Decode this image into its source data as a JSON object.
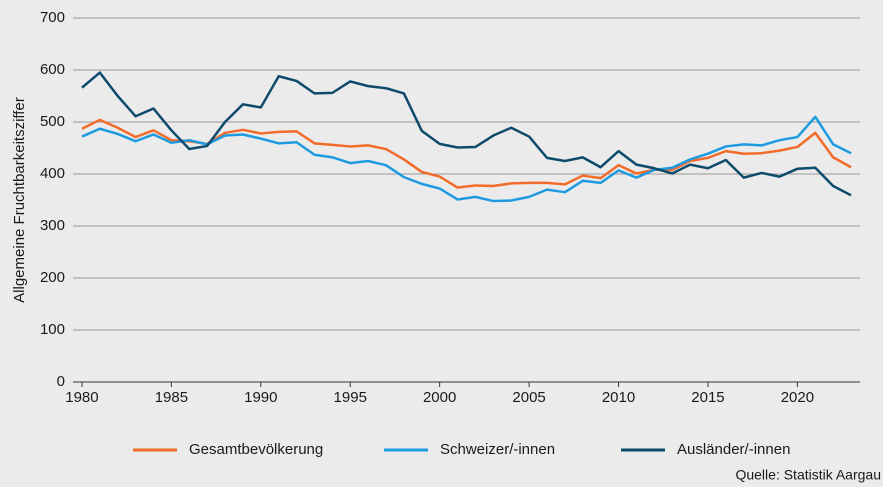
{
  "chart_data": {
    "type": "line",
    "y_label": "Allgemeine Fruchtbarkeitsziffer",
    "source": "Quelle: Statistik Aargau",
    "x": [
      1980,
      1981,
      1982,
      1983,
      1984,
      1985,
      1986,
      1987,
      1988,
      1989,
      1990,
      1991,
      1992,
      1993,
      1994,
      1995,
      1996,
      1997,
      1998,
      1999,
      2000,
      2001,
      2002,
      2003,
      2004,
      2005,
      2006,
      2007,
      2008,
      2009,
      2010,
      2011,
      2012,
      2013,
      2014,
      2015,
      2016,
      2017,
      2018,
      2019,
      2020,
      2021,
      2022,
      2023
    ],
    "series": [
      {
        "name": "Gesamtbevölkerung",
        "color": "#f26b2a",
        "values": [
          487,
          504,
          489,
          471,
          484,
          465,
          463,
          458,
          479,
          485,
          478,
          481,
          482,
          459,
          456,
          453,
          455,
          448,
          428,
          404,
          395,
          374,
          378,
          377,
          382,
          383,
          383,
          380,
          397,
          392,
          417,
          401,
          408,
          408,
          425,
          431,
          444,
          439,
          440,
          445,
          452,
          479,
          432,
          413
        ]
      },
      {
        "name": "Schweizer/-innen",
        "color": "#1e9be0",
        "values": [
          472,
          487,
          477,
          463,
          476,
          460,
          465,
          457,
          474,
          476,
          468,
          459,
          461,
          437,
          432,
          421,
          425,
          417,
          394,
          381,
          372,
          351,
          356,
          348,
          349,
          356,
          370,
          365,
          387,
          383,
          407,
          393,
          408,
          412,
          428,
          439,
          453,
          457,
          455,
          465,
          471,
          510,
          457,
          440
        ]
      },
      {
        "name": "Ausländer/-innen",
        "color": "#0d4a6b",
        "values": [
          566,
          595,
          550,
          511,
          526,
          484,
          448,
          454,
          500,
          534,
          528,
          588,
          579,
          555,
          556,
          578,
          569,
          565,
          555,
          483,
          458,
          451,
          452,
          474,
          489,
          472,
          431,
          425,
          432,
          413,
          444,
          418,
          411,
          401,
          418,
          411,
          427,
          393,
          402,
          395,
          410,
          412,
          377,
          359
        ]
      }
    ],
    "xlim": [
      1979.5,
      2023.5
    ],
    "xticks": [
      1980,
      1985,
      1990,
      1995,
      2000,
      2005,
      2010,
      2015,
      2020
    ],
    "ylim": [
      0,
      700
    ],
    "yticks": [
      0,
      100,
      200,
      300,
      400,
      500,
      600,
      700
    ],
    "grid": true,
    "legend": "bottom"
  }
}
